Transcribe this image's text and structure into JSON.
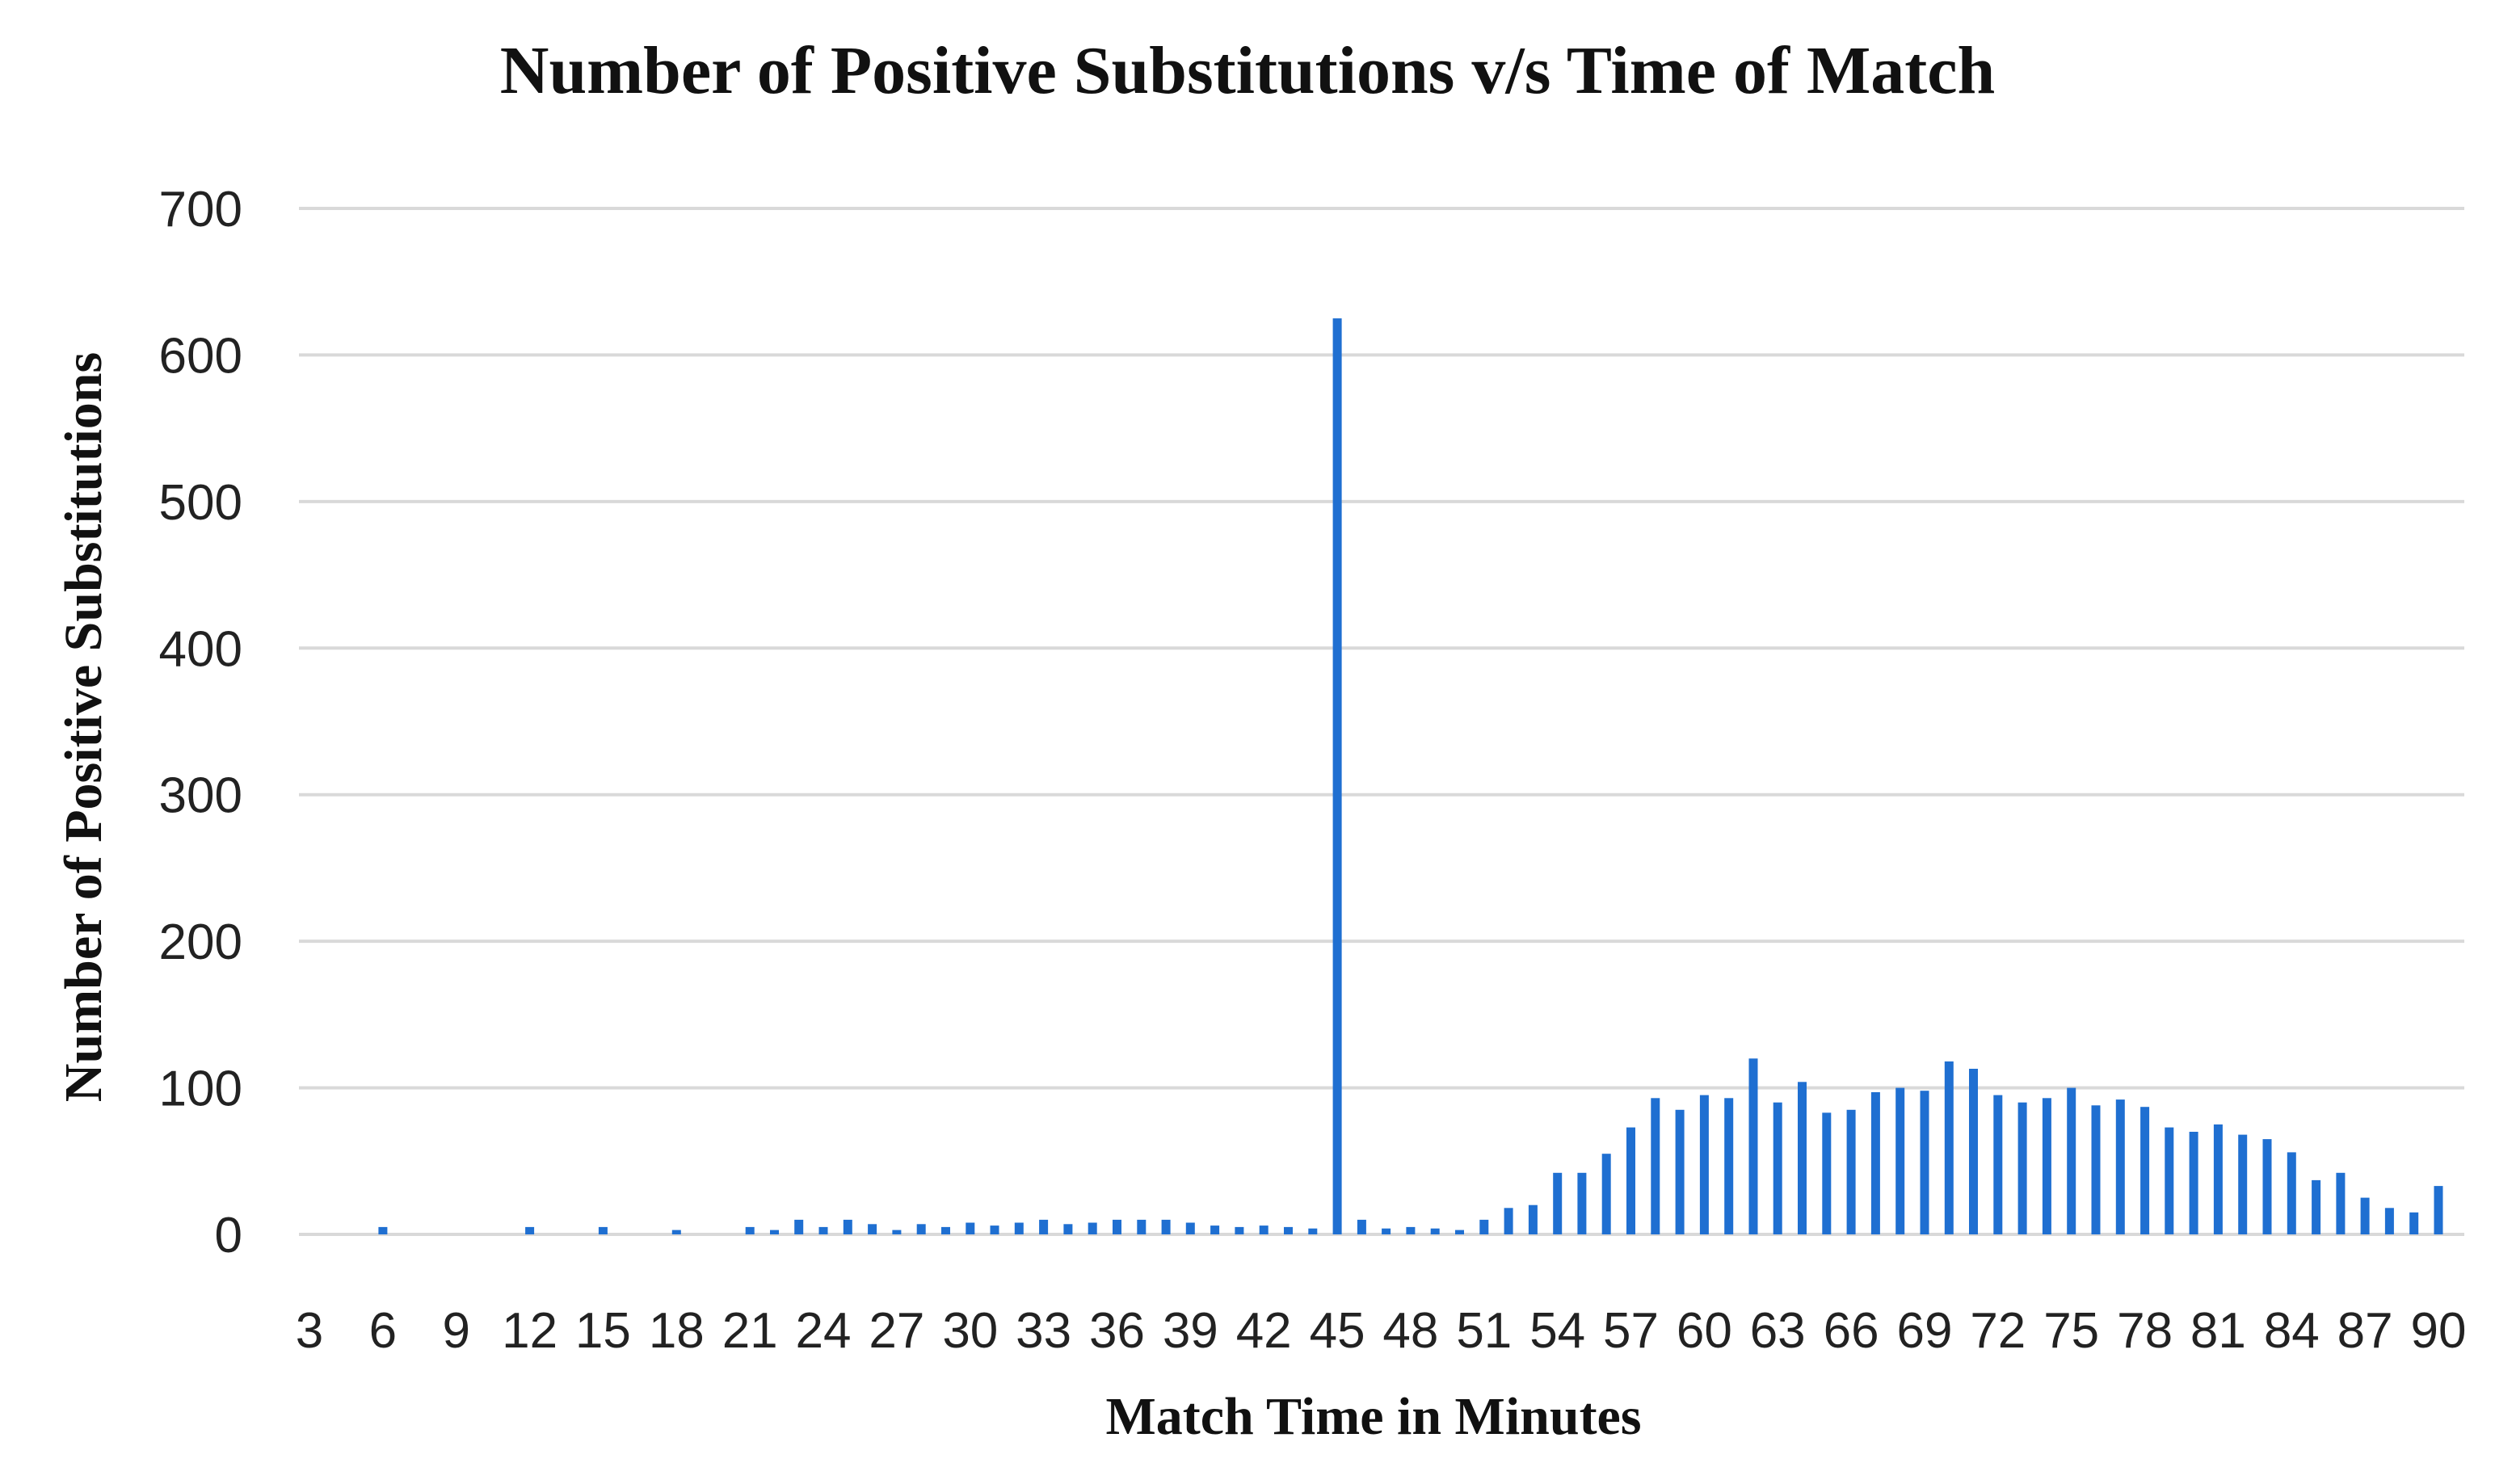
{
  "chart_data": {
    "type": "bar",
    "title": "Number of Positive Substitutions v/s Time of Match",
    "xlabel": "Match Time in Minutes",
    "ylabel": "Number of Positive Substitutions",
    "ylim": [
      0,
      700
    ],
    "yticks": [
      0,
      100,
      200,
      300,
      400,
      500,
      600,
      700
    ],
    "grid": true,
    "legend": "none",
    "bar_color": "#1f6fd1",
    "categories": [
      "1",
      "2",
      "3",
      "4",
      "5",
      "6",
      "7",
      "8",
      "9",
      "10",
      "11",
      "12",
      "13",
      "14",
      "15",
      "16",
      "17",
      "18",
      "19",
      "20",
      "21",
      "22",
      "23",
      "24",
      "25",
      "26",
      "27",
      "28",
      "29",
      "30",
      "31",
      "32",
      "33",
      "34",
      "35",
      "36",
      "37",
      "38",
      "39",
      "40",
      "41",
      "42",
      "43",
      "44",
      "45",
      "46",
      "47",
      "48",
      "49",
      "50",
      "51",
      "52",
      "53",
      "54",
      "55",
      "56",
      "57",
      "58",
      "59",
      "60",
      "61",
      "62",
      "63",
      "64",
      "65",
      "66",
      "67",
      "68",
      "69",
      "70",
      "71",
      "72",
      "73",
      "74",
      "75",
      "76",
      "77",
      "78",
      "79",
      "80",
      "81",
      "82",
      "83",
      "84",
      "85",
      "86",
      "87",
      "88",
      "89",
      "90"
    ],
    "xtick_labels": [
      "3",
      "6",
      "9",
      "12",
      "15",
      "18",
      "21",
      "24",
      "27",
      "30",
      "33",
      "36",
      "39",
      "42",
      "45",
      "48",
      "51",
      "54",
      "57",
      "60",
      "63",
      "66",
      "69",
      "72",
      "75",
      "78",
      "81",
      "84",
      "87",
      "90"
    ],
    "values": [
      0,
      0,
      0,
      0,
      0,
      5,
      0,
      0,
      0,
      0,
      0,
      5,
      0,
      0,
      5,
      0,
      0,
      3,
      0,
      0,
      5,
      3,
      10,
      5,
      10,
      7,
      3,
      7,
      5,
      8,
      6,
      8,
      10,
      7,
      8,
      10,
      10,
      10,
      8,
      6,
      5,
      6,
      5,
      4,
      625,
      10,
      4,
      5,
      4,
      3,
      10,
      18,
      20,
      42,
      42,
      55,
      73,
      93,
      85,
      95,
      93,
      120,
      90,
      104,
      83,
      85,
      97,
      100,
      98,
      118,
      113,
      95,
      90,
      93,
      100,
      88,
      92,
      87,
      73,
      70,
      75,
      68,
      65,
      56,
      37,
      42,
      25,
      18,
      15,
      33
    ]
  }
}
